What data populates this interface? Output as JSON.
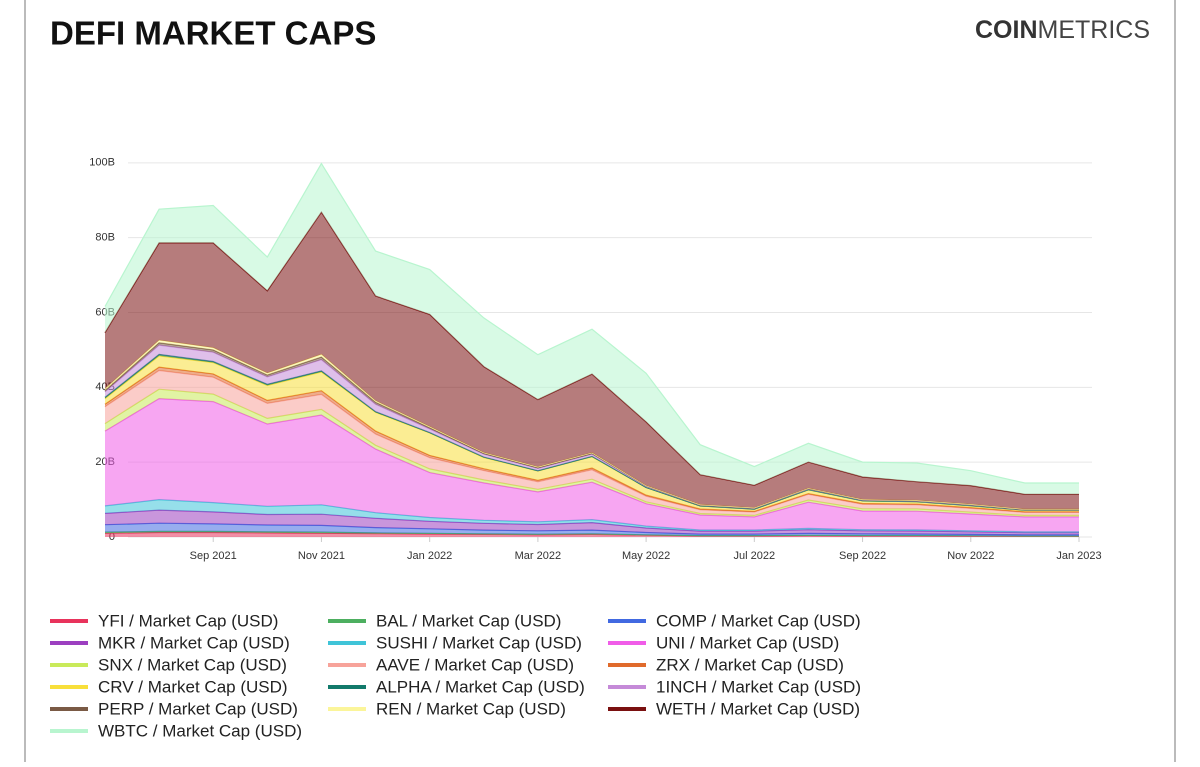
{
  "chart_data": {
    "type": "stacked-area",
    "title": "DEFI MARKET CAPS",
    "logo": {
      "bold": "COIN",
      "light": "METRICS"
    },
    "x": [
      "2021-07",
      "2021-08",
      "2021-09",
      "2021-10",
      "2021-11",
      "2021-12",
      "2022-01",
      "2022-02",
      "2022-03",
      "2022-04",
      "2022-05",
      "2022-06",
      "2022-07",
      "2022-08",
      "2022-09",
      "2022-10",
      "2022-11",
      "2022-12",
      "2023-01"
    ],
    "xlim": [
      "2021-07",
      "2023-01"
    ],
    "xticks": [
      {
        "value": "2021-09",
        "label": "Sep 2021"
      },
      {
        "value": "2021-11",
        "label": "Nov 2021"
      },
      {
        "value": "2022-01",
        "label": "Jan 2022"
      },
      {
        "value": "2022-03",
        "label": "Mar 2022"
      },
      {
        "value": "2022-05",
        "label": "May 2022"
      },
      {
        "value": "2022-07",
        "label": "Jul 2022"
      },
      {
        "value": "2022-09",
        "label": "Sep 2022"
      },
      {
        "value": "2022-11",
        "label": "Nov 2022"
      },
      {
        "value": "2023-01",
        "label": "Jan 2023"
      }
    ],
    "ylim": [
      0,
      120000000000
    ],
    "yticks": [
      0,
      {
        "value": 20000000000,
        "label": "20B"
      },
      {
        "value": 40000000000,
        "label": "40B"
      },
      {
        "value": 60000000000,
        "label": "60B"
      },
      {
        "value": 80000000000,
        "label": "80B"
      },
      {
        "value": 100000000000,
        "label": "100B"
      }
    ],
    "grid": true,
    "series": [
      {
        "name": "YFI / Market Cap (USD)",
        "color": "#e8335c",
        "values": [
          1000000000.0,
          1200000000.0,
          1200000000.0,
          1100000000.0,
          1000000000.0,
          900000000.0,
          800000000.0,
          700000000.0,
          600000000.0,
          700000000.0,
          500000000.0,
          300000000.0,
          300000000.0,
          350000000.0,
          300000000.0,
          300000000.0,
          250000000.0,
          200000000.0,
          200000000.0
        ]
      },
      {
        "name": "BAL / Market Cap (USD)",
        "color": "#4daf60",
        "values": [
          300000000.0,
          300000000.0,
          300000000.0,
          300000000.0,
          300000000.0,
          200000000.0,
          200000000.0,
          150000000.0,
          150000000.0,
          150000000.0,
          100000000.0,
          80000000.0,
          80000000.0,
          100000000.0,
          100000000.0,
          100000000.0,
          100000000.0,
          80000000.0,
          80000000.0
        ]
      },
      {
        "name": "COMP / Market Cap (USD)",
        "color": "#4169e1",
        "values": [
          2000000000.0,
          2200000000.0,
          2000000000.0,
          1800000000.0,
          1800000000.0,
          1400000000.0,
          1200000000.0,
          1000000000.0,
          900000000.0,
          1000000000.0,
          600000000.0,
          400000000.0,
          400000000.0,
          500000000.0,
          450000000.0,
          400000000.0,
          350000000.0,
          300000000.0,
          300000000.0
        ]
      },
      {
        "name": "MKR / Market Cap (USD)",
        "color": "#9c3fc0",
        "values": [
          3000000000.0,
          3500000000.0,
          3200000000.0,
          2800000000.0,
          3000000000.0,
          2500000000.0,
          2000000000.0,
          1800000000.0,
          1700000000.0,
          2000000000.0,
          1200000000.0,
          800000000.0,
          800000000.0,
          1000000000.0,
          800000000.0,
          800000000.0,
          700000000.0,
          600000000.0,
          600000000.0
        ]
      },
      {
        "name": "SUSHI / Market Cap (USD)",
        "color": "#3fc4d8",
        "values": [
          2000000000.0,
          2800000000.0,
          2500000000.0,
          2200000000.0,
          2500000000.0,
          1500000000.0,
          1000000000.0,
          800000000.0,
          700000000.0,
          800000000.0,
          500000000.0,
          300000000.0,
          300000000.0,
          350000000.0,
          300000000.0,
          300000000.0,
          250000000.0,
          200000000.0,
          200000000.0
        ]
      },
      {
        "name": "UNI / Market Cap (USD)",
        "color": "#f05ce8",
        "values": [
          20000000000.0,
          27000000000.0,
          27000000000.0,
          22000000000.0,
          24000000000.0,
          17000000000.0,
          12000000000.0,
          10000000000.0,
          8000000000.0,
          10000000000.0,
          6000000000.0,
          4000000000.0,
          3500000000.0,
          7000000000.0,
          5000000000.0,
          5000000000.0,
          4500000000.0,
          4000000000.0,
          4000000000.0
        ]
      },
      {
        "name": "SNX / Market Cap (USD)",
        "color": "#c9ea5a",
        "values": [
          2000000000.0,
          2500000000.0,
          2000000000.0,
          1500000000.0,
          1500000000.0,
          1000000000.0,
          1000000000.0,
          800000000.0,
          700000000.0,
          800000000.0,
          500000000.0,
          400000000.0,
          400000000.0,
          600000000.0,
          600000000.0,
          600000000.0,
          500000000.0,
          400000000.0,
          400000000.0
        ]
      },
      {
        "name": "AAVE / Market Cap (USD)",
        "color": "#f7a39a",
        "values": [
          4500000000.0,
          5000000000.0,
          4500000000.0,
          4000000000.0,
          4000000000.0,
          3000000000.0,
          3000000000.0,
          2500000000.0,
          2000000000.0,
          2500000000.0,
          1500000000.0,
          1000000000.0,
          900000000.0,
          1500000000.0,
          1200000000.0,
          1100000000.0,
          1000000000.0,
          800000000.0,
          800000000.0
        ]
      },
      {
        "name": "ZRX / Market Cap (USD)",
        "color": "#e06a2b",
        "values": [
          700000000.0,
          900000000.0,
          900000000.0,
          800000000.0,
          1000000000.0,
          800000000.0,
          600000000.0,
          500000000.0,
          400000000.0,
          500000000.0,
          300000000.0,
          200000000.0,
          150000000.0,
          200000000.0,
          200000000.0,
          200000000.0,
          200000000.0,
          150000000.0,
          150000000.0
        ]
      },
      {
        "name": "CRV / Market Cap (USD)",
        "color": "#f8df3a",
        "values": [
          1500000000.0,
          3000000000.0,
          3000000000.0,
          4000000000.0,
          5000000000.0,
          5000000000.0,
          6000000000.0,
          3000000000.0,
          2500000000.0,
          3000000000.0,
          2000000000.0,
          800000000.0,
          600000000.0,
          1000000000.0,
          700000000.0,
          600000000.0,
          500000000.0,
          400000000.0,
          400000000.0
        ]
      },
      {
        "name": "ALPHA / Market Cap (USD)",
        "color": "#127a6b",
        "values": [
          300000000.0,
          400000000.0,
          300000000.0,
          300000000.0,
          300000000.0,
          200000000.0,
          100000000.0,
          100000000.0,
          80000000.0,
          80000000.0,
          50000000.0,
          30000000.0,
          30000000.0,
          30000000.0,
          30000000.0,
          30000000.0,
          30000000.0,
          20000000.0,
          20000000.0
        ]
      },
      {
        "name": "1INCH / Market Cap (USD)",
        "color": "#c58ad8",
        "values": [
          1500000000.0,
          2500000000.0,
          2500000000.0,
          2000000000.0,
          3000000000.0,
          2000000000.0,
          1000000000.0,
          800000000.0,
          600000000.0,
          600000000.0,
          300000000.0,
          200000000.0,
          200000000.0,
          250000000.0,
          200000000.0,
          200000000.0,
          200000000.0,
          150000000.0,
          150000000.0
        ]
      },
      {
        "name": "PERP / Market Cap (USD)",
        "color": "#7a5a45",
        "values": [
          300000000.0,
          600000000.0,
          600000000.0,
          500000000.0,
          700000000.0,
          500000000.0,
          300000000.0,
          200000000.0,
          200000000.0,
          200000000.0,
          100000000.0,
          50000000.0,
          50000000.0,
          50000000.0,
          50000000.0,
          50000000.0,
          50000000.0,
          40000000.0,
          40000000.0
        ]
      },
      {
        "name": "REN / Market Cap (USD)",
        "color": "#fbf59a",
        "values": [
          500000000.0,
          700000000.0,
          600000000.0,
          500000000.0,
          700000000.0,
          400000000.0,
          300000000.0,
          200000000.0,
          200000000.0,
          200000000.0,
          100000000.0,
          100000000.0,
          100000000.0,
          100000000.0,
          100000000.0,
          100000000.0,
          100000000.0,
          80000000.0,
          80000000.0
        ]
      },
      {
        "name": "WETH / Market Cap (USD)",
        "color": "#7a1010",
        "values": [
          15000000000.0,
          26000000000.0,
          28000000000.0,
          22000000000.0,
          38000000000.0,
          28000000000.0,
          30000000000.0,
          23000000000.0,
          18000000000.0,
          21000000000.0,
          17000000000.0,
          8000000000.0,
          6000000000.0,
          7000000000.0,
          6000000000.0,
          5000000000.0,
          5000000000.0,
          4000000000.0,
          4000000000.0
        ]
      },
      {
        "name": "WBTC / Market Cap (USD)",
        "color": "#b8f5cf",
        "values": [
          7000000000.0,
          9000000000.0,
          10000000000.0,
          9000000000.0,
          13000000000.0,
          12000000000.0,
          12000000000.0,
          13000000000.0,
          12000000000.0,
          12000000000.0,
          13000000000.0,
          8000000000.0,
          5000000000.0,
          5000000000.0,
          4000000000.0,
          5000000000.0,
          4000000000.0,
          3000000000.0,
          3000000000.0
        ]
      }
    ]
  }
}
